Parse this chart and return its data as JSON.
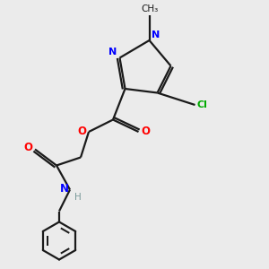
{
  "background_color": "#ebebeb",
  "bond_color": "#1a1a1a",
  "N_color": "#0000ff",
  "O_color": "#ff0000",
  "Cl_color": "#00aa00",
  "H_color": "#7a9a9a",
  "figsize": [
    3.0,
    3.0
  ],
  "dpi": 100,
  "xlim": [
    0,
    10
  ],
  "ylim": [
    0,
    10
  ]
}
